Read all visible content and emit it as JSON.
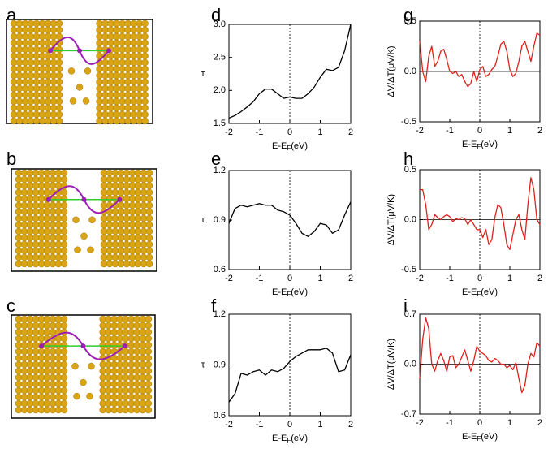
{
  "structure_labels": [
    "a",
    "b",
    "c"
  ],
  "chart_data": [
    {
      "type": "line",
      "panel_label": "d",
      "ylabel": "τ",
      "xlabel_parts": [
        "E-E",
        "F",
        "(eV)"
      ],
      "x": [
        -2,
        -1.8,
        -1.6,
        -1.4,
        -1.2,
        -1,
        -0.8,
        -0.6,
        -0.4,
        -0.2,
        0,
        0.2,
        0.4,
        0.6,
        0.8,
        1,
        1.2,
        1.4,
        1.6,
        1.8,
        2
      ],
      "series": [
        {
          "color": "#000000",
          "values": [
            1.58,
            1.62,
            1.68,
            1.75,
            1.83,
            1.95,
            2.02,
            2.02,
            1.95,
            1.88,
            1.9,
            1.88,
            1.88,
            1.95,
            2.05,
            2.2,
            2.32,
            2.3,
            2.35,
            2.6,
            3.0
          ]
        }
      ],
      "xlim": [
        -2,
        2
      ],
      "xticks": [
        -2,
        -1,
        0,
        1,
        2
      ],
      "ylim": [
        1.5,
        3
      ],
      "yticks": [
        1.5,
        {
          "value": 2,
          "label": "2.0"
        },
        2.5,
        {
          "value": 3,
          "label": "3.0"
        }
      ],
      "zero_hline": false,
      "zero_vline_dashed": true
    },
    {
      "type": "line",
      "panel_label": "e",
      "ylabel": "τ",
      "xlabel_parts": [
        "E-E",
        "F",
        "(eV)"
      ],
      "x": [
        -2,
        -1.8,
        -1.6,
        -1.4,
        -1.2,
        -1,
        -0.8,
        -0.6,
        -0.4,
        -0.2,
        0,
        0.2,
        0.4,
        0.6,
        0.8,
        1,
        1.2,
        1.4,
        1.6,
        1.8,
        2
      ],
      "series": [
        {
          "color": "#000000",
          "values": [
            0.88,
            0.97,
            0.99,
            0.98,
            0.99,
            1.0,
            0.99,
            0.99,
            0.96,
            0.95,
            0.93,
            0.88,
            0.82,
            0.8,
            0.83,
            0.88,
            0.87,
            0.82,
            0.84,
            0.93,
            1.01
          ]
        }
      ],
      "xlim": [
        -2,
        2
      ],
      "xticks": [
        -2,
        -1,
        0,
        1,
        2
      ],
      "ylim": [
        0.6,
        1.2
      ],
      "yticks": [
        0.6,
        0.9,
        1.2
      ],
      "zero_hline": false,
      "zero_vline_dashed": true
    },
    {
      "type": "line",
      "panel_label": "f",
      "ylabel": "τ",
      "xlabel_parts": [
        "E-E",
        "F",
        "(eV)"
      ],
      "x": [
        -2,
        -1.8,
        -1.6,
        -1.4,
        -1.2,
        -1,
        -0.8,
        -0.6,
        -0.4,
        -0.2,
        0,
        0.2,
        0.4,
        0.6,
        0.8,
        1,
        1.2,
        1.4,
        1.6,
        1.8,
        2
      ],
      "series": [
        {
          "color": "#000000",
          "values": [
            0.68,
            0.73,
            0.85,
            0.84,
            0.86,
            0.87,
            0.84,
            0.87,
            0.86,
            0.88,
            0.92,
            0.95,
            0.97,
            0.99,
            0.99,
            0.99,
            1.0,
            0.97,
            0.86,
            0.87,
            0.96
          ]
        }
      ],
      "xlim": [
        -2,
        2
      ],
      "xticks": [
        -2,
        -1,
        0,
        1,
        2
      ],
      "ylim": [
        0.6,
        1.2
      ],
      "yticks": [
        0.6,
        0.9,
        1.2
      ],
      "zero_hline": false,
      "zero_vline_dashed": true
    },
    {
      "type": "line",
      "panel_label": "g",
      "ylabel": "ΔV/ΔT(μV/K)",
      "xlabel_parts": [
        "E-E",
        "F",
        "(eV)"
      ],
      "x": [
        -2,
        -1.9,
        -1.8,
        -1.7,
        -1.6,
        -1.5,
        -1.4,
        -1.3,
        -1.2,
        -1.1,
        -1,
        -0.9,
        -0.8,
        -0.7,
        -0.6,
        -0.5,
        -0.4,
        -0.3,
        -0.2,
        -0.1,
        0,
        0.1,
        0.2,
        0.3,
        0.4,
        0.5,
        0.6,
        0.7,
        0.8,
        0.9,
        1,
        1.1,
        1.2,
        1.3,
        1.4,
        1.5,
        1.6,
        1.7,
        1.8,
        1.9,
        2
      ],
      "series": [
        {
          "color": "#e0201b",
          "values": [
            0.3,
            0.0,
            -0.1,
            0.15,
            0.25,
            0.05,
            0.1,
            0.2,
            0.22,
            0.12,
            0.0,
            -0.02,
            0.0,
            -0.05,
            -0.03,
            -0.1,
            -0.15,
            -0.12,
            0.0,
            -0.1,
            0.02,
            0.05,
            -0.05,
            -0.03,
            0.02,
            0.05,
            0.15,
            0.27,
            0.3,
            0.2,
            0.02,
            -0.05,
            -0.02,
            0.1,
            0.25,
            0.3,
            0.2,
            0.1,
            0.25,
            0.38,
            0.36
          ]
        }
      ],
      "xlim": [
        -2,
        2
      ],
      "xticks": [
        -2,
        -1,
        0,
        1,
        2
      ],
      "ylim": [
        -0.5,
        0.5
      ],
      "yticks": [
        -0.5,
        {
          "value": 0,
          "label": "0.0"
        },
        0.5
      ],
      "zero_hline": true,
      "zero_vline_dashed": true
    },
    {
      "type": "line",
      "panel_label": "h",
      "ylabel": "ΔV/ΔT(μV/K)",
      "xlabel_parts": [
        "E-E",
        "F",
        "(eV)"
      ],
      "x": [
        -2,
        -1.9,
        -1.8,
        -1.7,
        -1.6,
        -1.5,
        -1.4,
        -1.3,
        -1.2,
        -1.1,
        -1,
        -0.9,
        -0.8,
        -0.7,
        -0.6,
        -0.5,
        -0.4,
        -0.3,
        -0.2,
        -0.1,
        0,
        0.1,
        0.2,
        0.3,
        0.4,
        0.5,
        0.6,
        0.7,
        0.8,
        0.9,
        1,
        1.1,
        1.2,
        1.3,
        1.4,
        1.5,
        1.6,
        1.7,
        1.8,
        1.9,
        2
      ],
      "series": [
        {
          "color": "#e0201b",
          "values": [
            0.3,
            0.3,
            0.15,
            -0.1,
            -0.05,
            0.05,
            0.02,
            0.0,
            0.03,
            0.05,
            0.03,
            -0.02,
            0.01,
            0.0,
            0.02,
            0.01,
            -0.05,
            0.0,
            -0.05,
            -0.1,
            -0.1,
            -0.18,
            -0.1,
            -0.25,
            -0.2,
            0.02,
            0.15,
            0.12,
            -0.05,
            -0.25,
            -0.3,
            -0.15,
            0.0,
            0.05,
            -0.1,
            -0.2,
            0.15,
            0.42,
            0.3,
            0.0,
            -0.05
          ]
        }
      ],
      "xlim": [
        -2,
        2
      ],
      "xticks": [
        -2,
        -1,
        0,
        1,
        2
      ],
      "ylim": [
        -0.5,
        0.5
      ],
      "yticks": [
        -0.5,
        {
          "value": 0,
          "label": "0.0"
        },
        0.5
      ],
      "zero_hline": true,
      "zero_vline_dashed": true
    },
    {
      "type": "line",
      "panel_label": "i",
      "ylabel": "ΔV/ΔT(μV/K)",
      "xlabel_parts": [
        "E-E",
        "F",
        "(eV)"
      ],
      "x": [
        -2,
        -1.9,
        -1.8,
        -1.7,
        -1.6,
        -1.5,
        -1.4,
        -1.3,
        -1.2,
        -1.1,
        -1,
        -0.9,
        -0.8,
        -0.7,
        -0.6,
        -0.5,
        -0.4,
        -0.3,
        -0.2,
        -0.1,
        0,
        0.1,
        0.2,
        0.3,
        0.4,
        0.5,
        0.6,
        0.7,
        0.8,
        0.9,
        1,
        1.1,
        1.2,
        1.3,
        1.4,
        1.5,
        1.6,
        1.7,
        1.8,
        1.9,
        2
      ],
      "series": [
        {
          "color": "#e0201b",
          "values": [
            -0.2,
            0.35,
            0.65,
            0.5,
            0.0,
            -0.1,
            0.05,
            0.15,
            0.05,
            -0.1,
            0.1,
            0.12,
            -0.05,
            0.0,
            0.1,
            0.2,
            0.05,
            -0.1,
            0.05,
            0.25,
            0.18,
            0.15,
            0.12,
            0.05,
            0.03,
            0.08,
            0.05,
            0.0,
            0.0,
            -0.05,
            -0.02,
            -0.08,
            0.02,
            -0.2,
            -0.4,
            -0.3,
            0.0,
            0.15,
            0.1,
            0.3,
            0.25
          ]
        }
      ],
      "xlim": [
        -2,
        2
      ],
      "xticks": [
        -2,
        -1,
        0,
        1,
        2
      ],
      "ylim": [
        -0.7,
        0.7
      ],
      "yticks": [
        -0.7,
        {
          "value": 0,
          "label": "0.0"
        },
        0.7
      ],
      "zero_hline": true,
      "zero_vline_dashed": true
    }
  ]
}
